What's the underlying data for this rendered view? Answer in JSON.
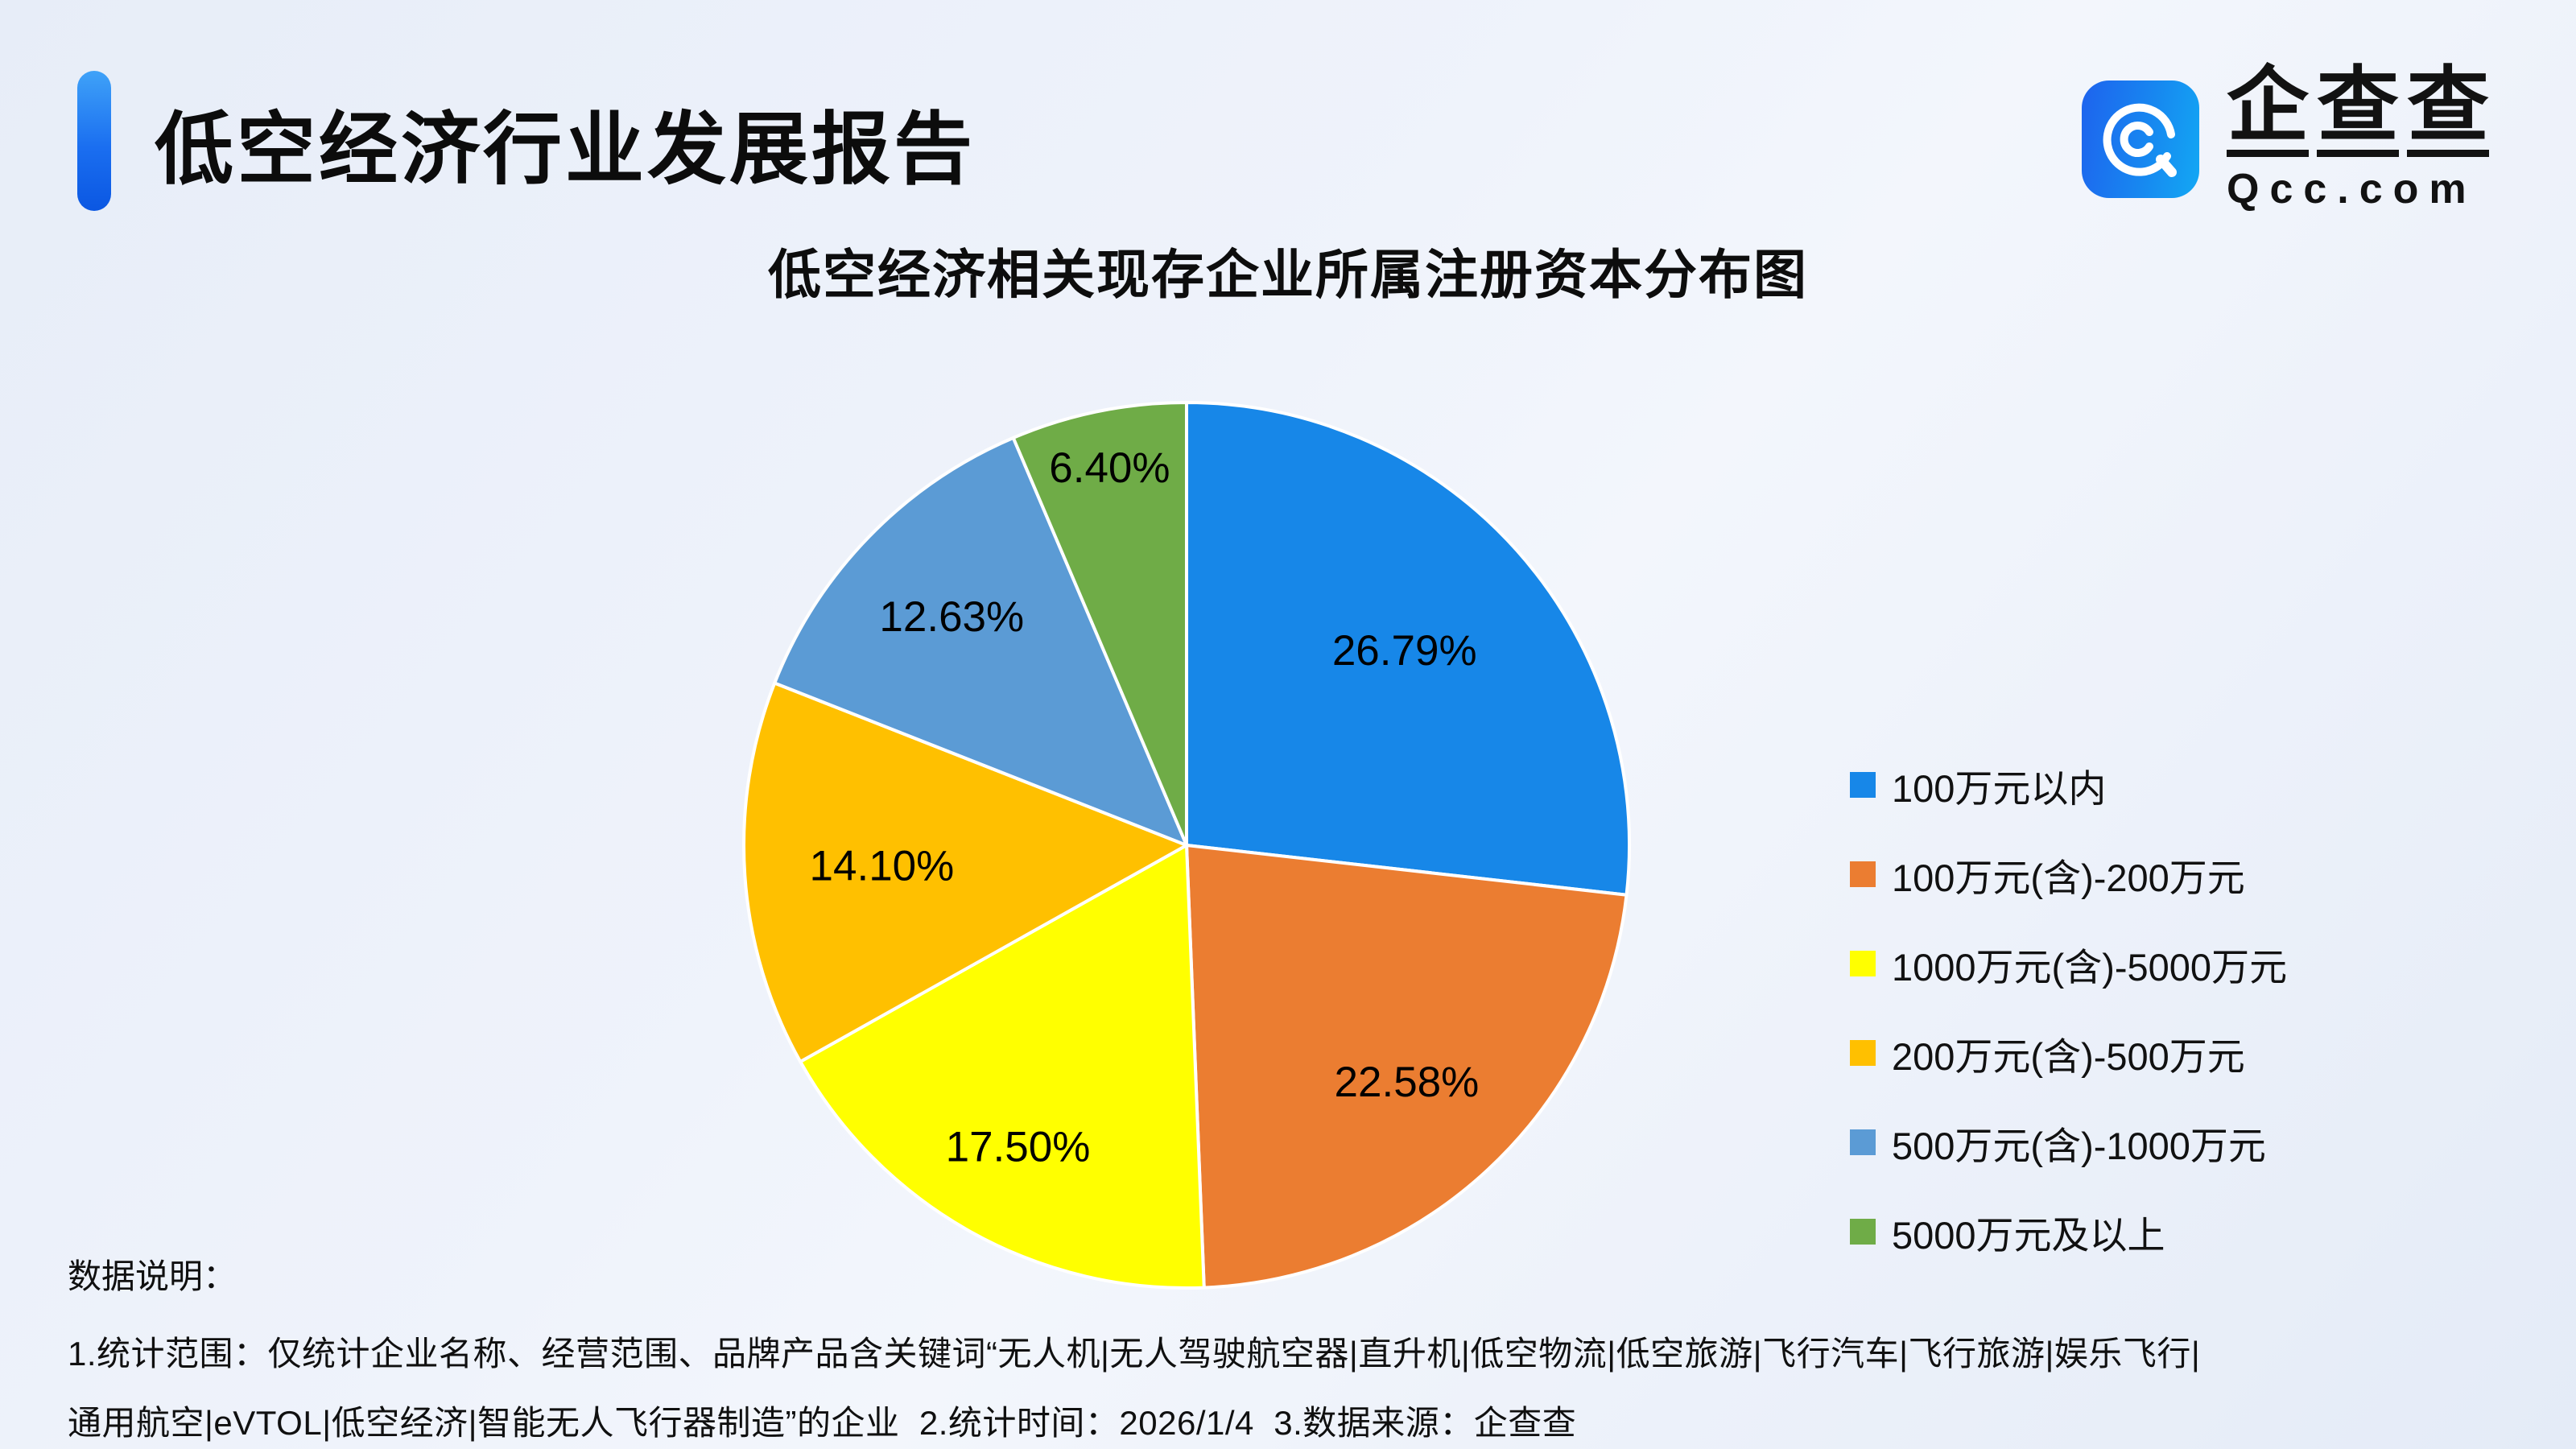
{
  "page": {
    "title": "低空经济行业发展报告"
  },
  "logo": {
    "name_chars": [
      "企",
      "查",
      "查"
    ],
    "domain": "Qcc.com",
    "icon": "qcc-logo-icon",
    "brand_color": "#1787f0"
  },
  "chart_data": {
    "type": "pie",
    "title": "低空经济相关现存企业所属注册资本分布图",
    "start_angle_deg": 0,
    "direction": "clockwise",
    "legend_position": "right",
    "label_format": "percent-2-decimals",
    "slices": [
      {
        "label": "100万元以内",
        "value": 26.79,
        "color": "#1787e8",
        "label_r": 0.66
      },
      {
        "label": "100万元(含)-200万元",
        "value": 22.58,
        "color": "#eb7d31",
        "label_r": 0.73
      },
      {
        "label": "1000万元(含)-5000万元",
        "value": 17.5,
        "color": "#ffff00",
        "label_r": 0.78
      },
      {
        "label": "200万元(含)-500万元",
        "value": 14.1,
        "color": "#ffc000",
        "label_r": 0.69
      },
      {
        "label": "500万元(含)-1000万元",
        "value": 12.63,
        "color": "#5b9bd5",
        "label_r": 0.74
      },
      {
        "label": "5000万元及以上",
        "value": 6.4,
        "color": "#6fac47",
        "label_r": 0.87
      }
    ]
  },
  "notes": {
    "heading": "数据说明：",
    "line1": "1.统计范围：仅统计企业名称、经营范围、品牌产品含关键词“无人机|无人驾驶航空器|直升机|低空物流|低空旅游|飞行汽车|飞行旅游|娱乐飞行|",
    "line2": "通用航空|eVTOL|低空经济|智能无人飞行器制造”的企业  2.统计时间：2026/1/4  3.数据来源：企查查"
  }
}
